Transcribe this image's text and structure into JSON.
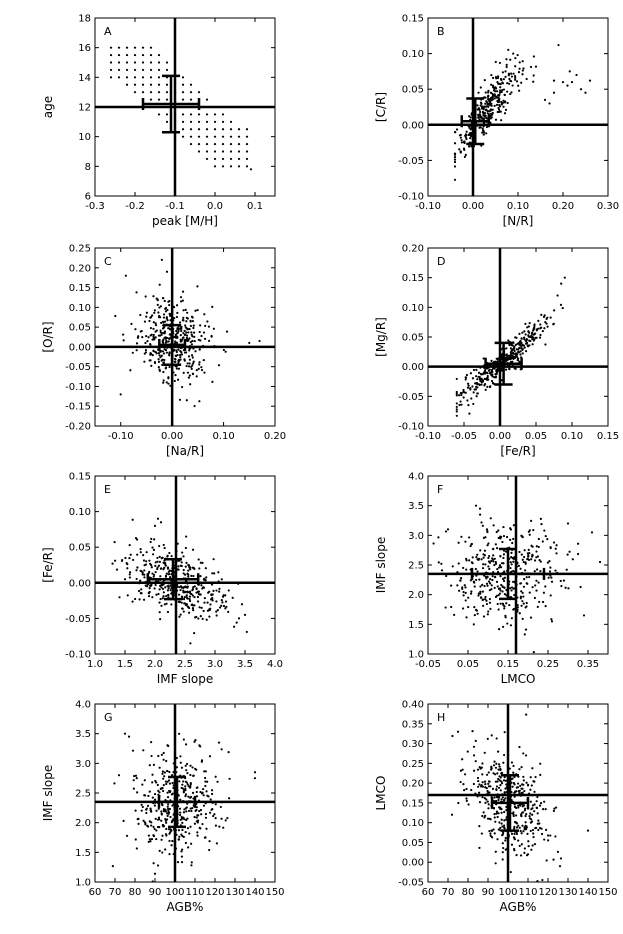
{
  "chart_data": [
    {
      "panel": "A",
      "type": "scatter",
      "xlabel": "peak [M/H]",
      "ylabel": "age",
      "xlim": [
        -0.3,
        0.15
      ],
      "ylim": [
        6,
        18
      ],
      "xticks": [
        "-0.3",
        "-0.2",
        "-0.1",
        "0.0",
        "0.1"
      ],
      "yticks": [
        "6",
        "8",
        "10",
        "12",
        "14",
        "16",
        "18"
      ],
      "ref": {
        "x": -0.1,
        "y": 12.0
      },
      "errbar": {
        "x": -0.11,
        "y": 12.2,
        "xerr": 0.07,
        "yerr": 1.9
      },
      "cloud": {
        "kind": "grid",
        "grid_x": [
          -0.26,
          0.08,
          0.02
        ],
        "grid_y": [
          8,
          16,
          0.5
        ],
        "band": [
          [
            -0.26,
            16
          ],
          [
            0.08,
            8
          ]
        ],
        "upper_offset": 2.5,
        "lower_offset": 2.0
      },
      "extra_points": [
        [
          0.09,
          7.8
        ]
      ]
    },
    {
      "panel": "B",
      "type": "scatter",
      "xlabel": "[N/R]",
      "ylabel": "[C/R]",
      "xlim": [
        -0.1,
        0.3
      ],
      "ylim": [
        -0.1,
        0.15
      ],
      "xticks": [
        "-0.10",
        "0.00",
        "0.10",
        "0.20",
        "0.30"
      ],
      "yticks": [
        "-0.10",
        "-0.05",
        "0.00",
        "0.05",
        "0.10",
        "0.15"
      ],
      "ref": {
        "x": 0.0,
        "y": 0.0
      },
      "errbar": {
        "x": 0.005,
        "y": 0.005,
        "xerr": 0.03,
        "yerr": 0.032
      },
      "cloud": {
        "kind": "trend",
        "n": 340,
        "x_mean": 0.02,
        "x_sd": 0.033,
        "x_min": -0.04,
        "x_max": 0.14,
        "slope": 0.85,
        "intercept": -0.005,
        "scatter": 0.016,
        "sat": 0.075,
        "skew": "right"
      },
      "extra_points": [
        [
          0.19,
          0.112
        ],
        [
          0.2,
          0.06
        ],
        [
          0.21,
          0.055
        ],
        [
          0.22,
          0.06
        ],
        [
          0.24,
          0.05
        ],
        [
          0.25,
          0.045
        ],
        [
          0.26,
          0.062
        ],
        [
          0.18,
          0.045
        ],
        [
          0.17,
          0.03
        ],
        [
          0.16,
          0.035
        ],
        [
          0.23,
          0.07
        ],
        [
          0.215,
          0.075
        ],
        [
          0.18,
          0.062
        ]
      ]
    },
    {
      "panel": "C",
      "type": "scatter",
      "xlabel": "[Na/R]",
      "ylabel": "[O/R]",
      "xlim": [
        -0.15,
        0.2
      ],
      "ylim": [
        -0.2,
        0.25
      ],
      "xticks": [
        "-0.10",
        "0.00",
        "0.10",
        "0.20"
      ],
      "yticks": [
        "-0.20",
        "-0.15",
        "-0.10",
        "-0.05",
        "0.00",
        "0.05",
        "0.10",
        "0.15",
        "0.20",
        "0.25"
      ],
      "ref": {
        "x": 0.0,
        "y": 0.0
      },
      "errbar": {
        "x": 0.0,
        "y": 0.005,
        "xerr": 0.025,
        "yerr": 0.05
      },
      "cloud": {
        "kind": "blob",
        "n": 420,
        "x_mean": 0.005,
        "x_sd": 0.035,
        "y_mean": 0.015,
        "y_sd": 0.055,
        "rho": -0.1
      },
      "extra_points": [
        [
          -0.02,
          0.22
        ],
        [
          -0.01,
          0.19
        ],
        [
          0.15,
          0.01
        ],
        [
          0.17,
          0.015
        ],
        [
          -0.09,
          0.18
        ],
        [
          -0.1,
          -0.12
        ]
      ]
    },
    {
      "panel": "D",
      "type": "scatter",
      "xlabel": "[Fe/R]",
      "ylabel": "[Mg/R]",
      "xlim": [
        -0.1,
        0.15
      ],
      "ylim": [
        -0.1,
        0.2
      ],
      "xticks": [
        "-0.10",
        "-0.05",
        "0.00",
        "0.05",
        "0.10",
        "0.15"
      ],
      "yticks": [
        "-0.10",
        "-0.05",
        "0.00",
        "0.05",
        "0.10",
        "0.15",
        "0.20"
      ],
      "ref": {
        "x": 0.0,
        "y": 0.0
      },
      "errbar": {
        "x": 0.005,
        "y": 0.005,
        "xerr": 0.025,
        "yerr": 0.035
      },
      "cloud": {
        "kind": "trend",
        "n": 420,
        "x_mean": 0.008,
        "x_sd": 0.03,
        "x_min": -0.06,
        "x_max": 0.09,
        "slope": 1.0,
        "intercept": 0.005,
        "scatter": 0.013
      },
      "extra_points": [
        [
          0.09,
          0.15
        ],
        [
          0.085,
          0.14
        ],
        [
          0.08,
          0.12
        ]
      ]
    },
    {
      "panel": "E",
      "type": "scatter",
      "xlabel": "IMF slope",
      "ylabel": "[Fe/R]",
      "xlim": [
        1.0,
        4.0
      ],
      "ylim": [
        -0.1,
        0.15
      ],
      "xticks": [
        "1.0",
        "1.5",
        "2.0",
        "2.5",
        "3.0",
        "3.5",
        "4.0"
      ],
      "yticks": [
        "-0.10",
        "-0.05",
        "0.00",
        "0.05",
        "0.10",
        "0.15"
      ],
      "ref": {
        "x": 2.35,
        "y": 0.0
      },
      "errbar": {
        "x": 2.3,
        "y": 0.005,
        "xerr": 0.42,
        "yerr": 0.028
      },
      "cloud": {
        "kind": "blob",
        "n": 420,
        "x_mean": 2.35,
        "x_sd": 0.42,
        "y_mean": 0.0,
        "y_sd": 0.025,
        "rho": -0.45
      },
      "extra_points": [
        [
          2.05,
          0.09
        ],
        [
          2.1,
          0.085
        ],
        [
          2.0,
          0.08
        ],
        [
          3.5,
          -0.045
        ],
        [
          3.4,
          -0.05
        ],
        [
          1.5,
          0.005
        ]
      ]
    },
    {
      "panel": "F",
      "type": "scatter",
      "xlabel": "LMCO",
      "ylabel": "IMF slope",
      "xlim": [
        -0.05,
        0.4
      ],
      "ylim": [
        1.0,
        4.0
      ],
      "xticks": [
        "-0.05",
        "0.05",
        "0.15",
        "0.25",
        "0.35"
      ],
      "yticks": [
        "1.0",
        "1.5",
        "2.0",
        "2.5",
        "3.0",
        "3.5",
        "4.0"
      ],
      "ref": {
        "x": 0.17,
        "y": 2.35
      },
      "errbar": {
        "x": 0.15,
        "y": 2.35,
        "xerr": 0.09,
        "yerr": 0.42
      },
      "cloud": {
        "kind": "blob",
        "n": 420,
        "x_mean": 0.14,
        "x_sd": 0.07,
        "y_mean": 2.35,
        "y_sd": 0.42,
        "rho": 0.15
      },
      "extra_points": [
        [
          0.0,
          3.1
        ],
        [
          0.07,
          3.5
        ],
        [
          0.08,
          3.45
        ],
        [
          0.26,
          1.55
        ],
        [
          0.34,
          1.65
        ],
        [
          0.3,
          3.2
        ],
        [
          0.38,
          2.55
        ],
        [
          0.36,
          3.05
        ]
      ]
    },
    {
      "panel": "G",
      "type": "scatter",
      "xlabel": "AGB%",
      "ylabel": "IMF slope",
      "xlim": [
        60,
        150
      ],
      "ylim": [
        1.0,
        4.0
      ],
      "xticks": [
        "60",
        "70",
        "80",
        "90",
        "100",
        "110",
        "120",
        "130",
        "140",
        "150"
      ],
      "yticks": [
        "1.0",
        "1.5",
        "2.0",
        "2.5",
        "3.0",
        "3.5",
        "4.0"
      ],
      "ref": {
        "x": 100,
        "y": 2.35
      },
      "errbar": {
        "x": 101,
        "y": 2.35,
        "xerr": 9,
        "yerr": 0.42
      },
      "cloud": {
        "kind": "blob",
        "n": 420,
        "x_mean": 101,
        "x_sd": 10,
        "y_mean": 2.35,
        "y_sd": 0.45,
        "rho": 0.05
      },
      "extra_points": [
        [
          75,
          3.5
        ],
        [
          77,
          3.45
        ],
        [
          140,
          2.85
        ],
        [
          140,
          2.75
        ],
        [
          72,
          2.8
        ],
        [
          122,
          3.35
        ]
      ]
    },
    {
      "panel": "H",
      "type": "scatter",
      "xlabel": "AGB%",
      "ylabel": "LMCO",
      "xlim": [
        60,
        150
      ],
      "ylim": [
        -0.05,
        0.4
      ],
      "xticks": [
        "60",
        "70",
        "80",
        "90",
        "100",
        "110",
        "120",
        "130",
        "140",
        "150"
      ],
      "yticks": [
        "-0.05",
        "0.00",
        "0.05",
        "0.10",
        "0.15",
        "0.20",
        "0.25",
        "0.30",
        "0.35",
        "0.40"
      ],
      "ref": {
        "x": 100,
        "y": 0.17
      },
      "errbar": {
        "x": 101,
        "y": 0.15,
        "xerr": 9,
        "yerr": 0.07
      },
      "cloud": {
        "kind": "blob",
        "n": 420,
        "x_mean": 101,
        "x_sd": 10,
        "y_mean": 0.15,
        "y_sd": 0.07,
        "rho": -0.45
      },
      "extra_points": [
        [
          126,
          -0.01
        ],
        [
          140,
          0.08
        ],
        [
          75,
          0.33
        ],
        [
          72,
          0.12
        ],
        [
          110,
          0.02
        ]
      ]
    }
  ]
}
